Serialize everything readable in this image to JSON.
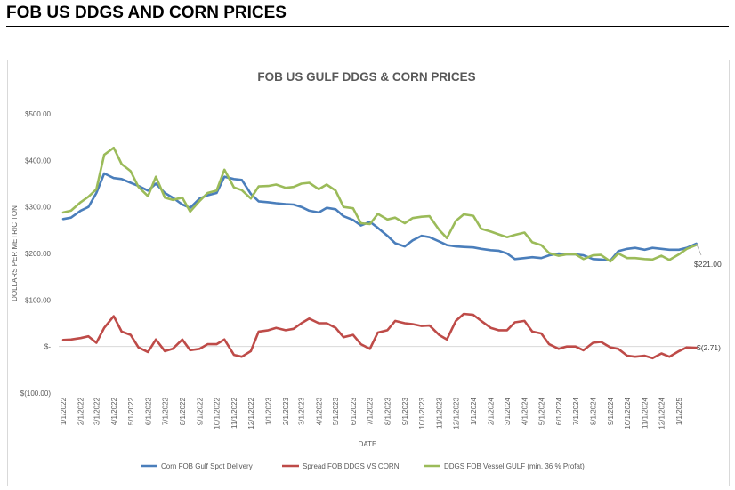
{
  "page": {
    "heading": "FOB US DDGS AND CORN PRICES"
  },
  "chart_data": {
    "type": "line",
    "title": "FOB US GULF DDGS & CORN PRICES",
    "xlabel": "DATE",
    "ylabel": "DOLLARS PER METRIC TON",
    "ylim": [
      -100,
      500
    ],
    "y_ticks": [
      {
        "value": 500,
        "label": "$500.00"
      },
      {
        "value": 400,
        "label": "$400.00"
      },
      {
        "value": 300,
        "label": "$300.00"
      },
      {
        "value": 200,
        "label": "$200.00"
      },
      {
        "value": 100,
        "label": "$100.00"
      },
      {
        "value": 0,
        "label": "$-"
      },
      {
        "value": -100,
        "label": "$(100.00)"
      }
    ],
    "x_ticks": [
      "1/1/2022",
      "2/1/2022",
      "3/1/2022",
      "4/1/2022",
      "5/1/2022",
      "6/1/2022",
      "7/1/2022",
      "8/1/2022",
      "9/1/2022",
      "10/1/2022",
      "11/1/2022",
      "12/1/2022",
      "1/1/2023",
      "2/1/2023",
      "3/1/2023",
      "4/1/2023",
      "5/1/2023",
      "6/1/2023",
      "7/1/2023",
      "8/1/2023",
      "9/1/2023",
      "10/1/2023",
      "11/1/2023",
      "12/1/2023",
      "1/1/2024",
      "2/1/2024",
      "3/1/2024",
      "4/1/2024",
      "5/1/2024",
      "6/1/2024",
      "7/1/2024",
      "8/1/2024",
      "9/1/2024",
      "10/1/2024",
      "11/1/2024",
      "12/1/2024",
      "1/1/2025"
    ],
    "x": [
      "2022-01-01",
      "2022-01-15",
      "2022-02-01",
      "2022-02-15",
      "2022-03-01",
      "2022-03-15",
      "2022-04-01",
      "2022-04-15",
      "2022-05-01",
      "2022-05-15",
      "2022-06-01",
      "2022-06-15",
      "2022-07-01",
      "2022-07-15",
      "2022-08-01",
      "2022-08-15",
      "2022-09-01",
      "2022-09-15",
      "2022-10-01",
      "2022-10-15",
      "2022-11-01",
      "2022-11-15",
      "2022-12-01",
      "2022-12-15",
      "2023-01-01",
      "2023-01-15",
      "2023-02-01",
      "2023-02-15",
      "2023-03-01",
      "2023-03-15",
      "2023-04-01",
      "2023-04-15",
      "2023-05-01",
      "2023-05-15",
      "2023-06-01",
      "2023-06-15",
      "2023-07-01",
      "2023-07-15",
      "2023-08-01",
      "2023-08-15",
      "2023-09-01",
      "2023-09-15",
      "2023-10-01",
      "2023-10-15",
      "2023-11-01",
      "2023-11-15",
      "2023-12-01",
      "2023-12-15",
      "2024-01-01",
      "2024-01-15",
      "2024-02-01",
      "2024-02-15",
      "2024-03-01",
      "2024-03-15",
      "2024-04-01",
      "2024-04-15",
      "2024-05-01",
      "2024-05-15",
      "2024-06-01",
      "2024-06-15",
      "2024-07-01",
      "2024-07-15",
      "2024-08-01",
      "2024-08-15",
      "2024-09-01",
      "2024-09-15",
      "2024-10-01",
      "2024-10-15",
      "2024-11-01",
      "2024-11-15",
      "2024-12-01",
      "2024-12-15",
      "2025-01-01",
      "2025-01-15",
      "2025-02-01"
    ],
    "series": [
      {
        "name": "Corn FOB Gulf Spot Delivery",
        "color": "#4a7ebb",
        "values": [
          274,
          277,
          292,
          300,
          330,
          372,
          362,
          360,
          352,
          345,
          335,
          350,
          330,
          320,
          305,
          298,
          318,
          325,
          330,
          365,
          360,
          358,
          328,
          312,
          310,
          308,
          306,
          305,
          300,
          292,
          288,
          298,
          295,
          280,
          272,
          260,
          268,
          255,
          238,
          222,
          215,
          228,
          238,
          235,
          226,
          218,
          215,
          214,
          213,
          210,
          207,
          206,
          200,
          188,
          190,
          192,
          190,
          196,
          200,
          198,
          198,
          196,
          188,
          187,
          185,
          205,
          210,
          212,
          208,
          212,
          210,
          208,
          208,
          212,
          221
        ]
      },
      {
        "name": "Spread FOB DDGS VS CORN",
        "color": "#be4b48",
        "values": [
          14,
          15,
          18,
          22,
          8,
          40,
          65,
          32,
          25,
          -2,
          -12,
          15,
          -10,
          -5,
          15,
          -8,
          -5,
          5,
          5,
          15,
          -18,
          -22,
          -10,
          32,
          35,
          40,
          35,
          38,
          50,
          60,
          50,
          50,
          40,
          20,
          25,
          5,
          -5,
          30,
          35,
          55,
          50,
          48,
          44,
          45,
          25,
          15,
          55,
          70,
          68,
          55,
          40,
          35,
          35,
          52,
          55,
          32,
          28,
          5,
          -5,
          0,
          0,
          -8,
          8,
          10,
          -2,
          -5,
          -20,
          -22,
          -20,
          -25,
          -15,
          -22,
          -10,
          -2,
          -2.71
        ]
      },
      {
        "name": "DDGS FOB Vessel GULF  (min. 36 % Profat)",
        "color": "#9bbb59",
        "values": [
          288,
          292,
          310,
          322,
          338,
          412,
          427,
          392,
          377,
          343,
          323,
          365,
          320,
          315,
          320,
          290,
          313,
          330,
          335,
          380,
          342,
          336,
          318,
          344,
          345,
          348,
          341,
          343,
          350,
          352,
          338,
          348,
          335,
          300,
          297,
          265,
          263,
          285,
          273,
          277,
          265,
          276,
          279,
          280,
          251,
          233,
          270,
          284,
          281,
          253,
          247,
          241,
          235,
          240,
          245,
          224,
          218,
          201,
          195,
          198,
          198,
          188,
          196,
          197,
          183,
          200,
          190,
          190,
          188,
          187,
          195,
          186,
          198,
          210,
          218.29
        ]
      }
    ],
    "end_labels": {
      "corn": "$221.00",
      "spread": "$(2.71)"
    },
    "legend": {
      "position": "bottom"
    },
    "grid": false
  }
}
